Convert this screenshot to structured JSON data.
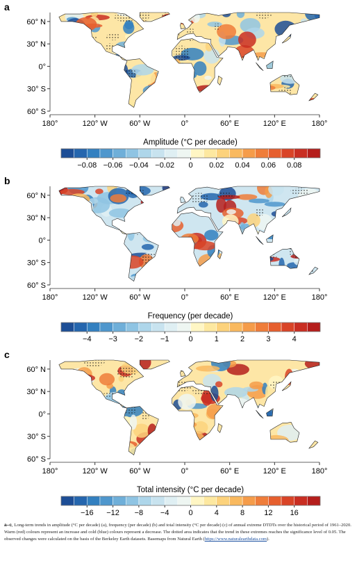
{
  "panels": [
    {
      "label": "a",
      "lat_ticks": [
        "60° N",
        "30° N",
        "0°",
        "30° S",
        "60° S"
      ],
      "lon_ticks": [
        "180°",
        "120° W",
        "60° W",
        "0°",
        "60° E",
        "120° E",
        "180°"
      ],
      "colorbar": {
        "title": "Amplitude (°C per decade)",
        "ticks": [
          "−0.08",
          "−0.06",
          "−0.04",
          "−0.02",
          "0",
          "0.02",
          "0.04",
          "0.06",
          "0.08"
        ]
      }
    },
    {
      "label": "b",
      "lat_ticks": [
        "60° N",
        "30° N",
        "0°",
        "30° S",
        "60° S"
      ],
      "lon_ticks": [
        "180°",
        "120° W",
        "60° W",
        "0°",
        "60° E",
        "120° E",
        "180°"
      ],
      "colorbar": {
        "title": "Frequency (per decade)",
        "ticks": [
          "−4",
          "−3",
          "−2",
          "−1",
          "0",
          "1",
          "2",
          "3",
          "4"
        ]
      }
    },
    {
      "label": "c",
      "lat_ticks": [
        "60° N",
        "30° N",
        "0°",
        "30° S",
        "60° S"
      ],
      "lon_ticks": [
        "180°",
        "120° W",
        "60° W",
        "0°",
        "60° E",
        "120° E",
        "180°"
      ],
      "colorbar": {
        "title": "Total intensity (°C per decade)",
        "ticks": [
          "−16",
          "−12",
          "−8",
          "−4",
          "0",
          "4",
          "8",
          "12",
          "16"
        ]
      }
    }
  ],
  "caption": {
    "lead": "a–c",
    "body": ", Long-term trends in amplitude (°C per decade) (a), frequency (per decade) (b) and total intensity (°C per decade) (c) of annual extreme DTDTs over the historical period of 1961–2020. Warm (red) colours represent an increase and cold (blue) colours represent a decrease. The dotted area indicates that the trend in these extremes reaches the significance level of 0.05. The observed changes were calculated on the basis of the Berkeley Earth datasets. Basemaps from Natural Earth (",
    "link": "https://www.naturalearthdata.com",
    "tail": ")."
  }
}
